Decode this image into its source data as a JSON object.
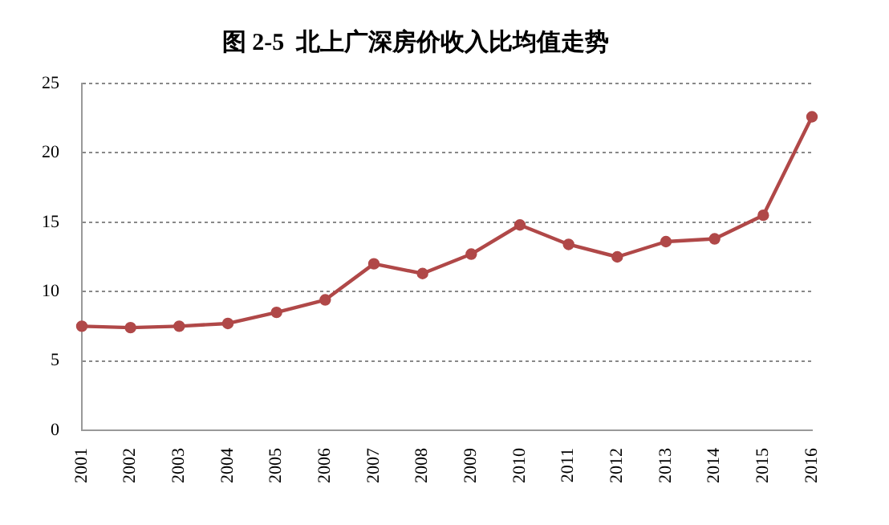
{
  "chart_data": {
    "type": "line",
    "title": "图 2-5  北上广深房价收入比均值走势",
    "categories": [
      "2001",
      "2002",
      "2003",
      "2004",
      "2005",
      "2006",
      "2007",
      "2008",
      "2009",
      "2010",
      "2011",
      "2012",
      "2013",
      "2014",
      "2015",
      "2016"
    ],
    "series": [
      {
        "color": "#b04848",
        "values": [
          7.5,
          7.4,
          7.5,
          7.7,
          8.5,
          9.4,
          12.0,
          11.3,
          12.7,
          14.8,
          13.4,
          12.5,
          13.6,
          13.8,
          15.5,
          22.6
        ]
      }
    ],
    "ylim": [
      0,
      25
    ],
    "yticks": [
      0,
      5,
      10,
      15,
      20,
      25
    ],
    "grid": "y",
    "legend": false,
    "marker": "circle",
    "line_style": "solid"
  }
}
